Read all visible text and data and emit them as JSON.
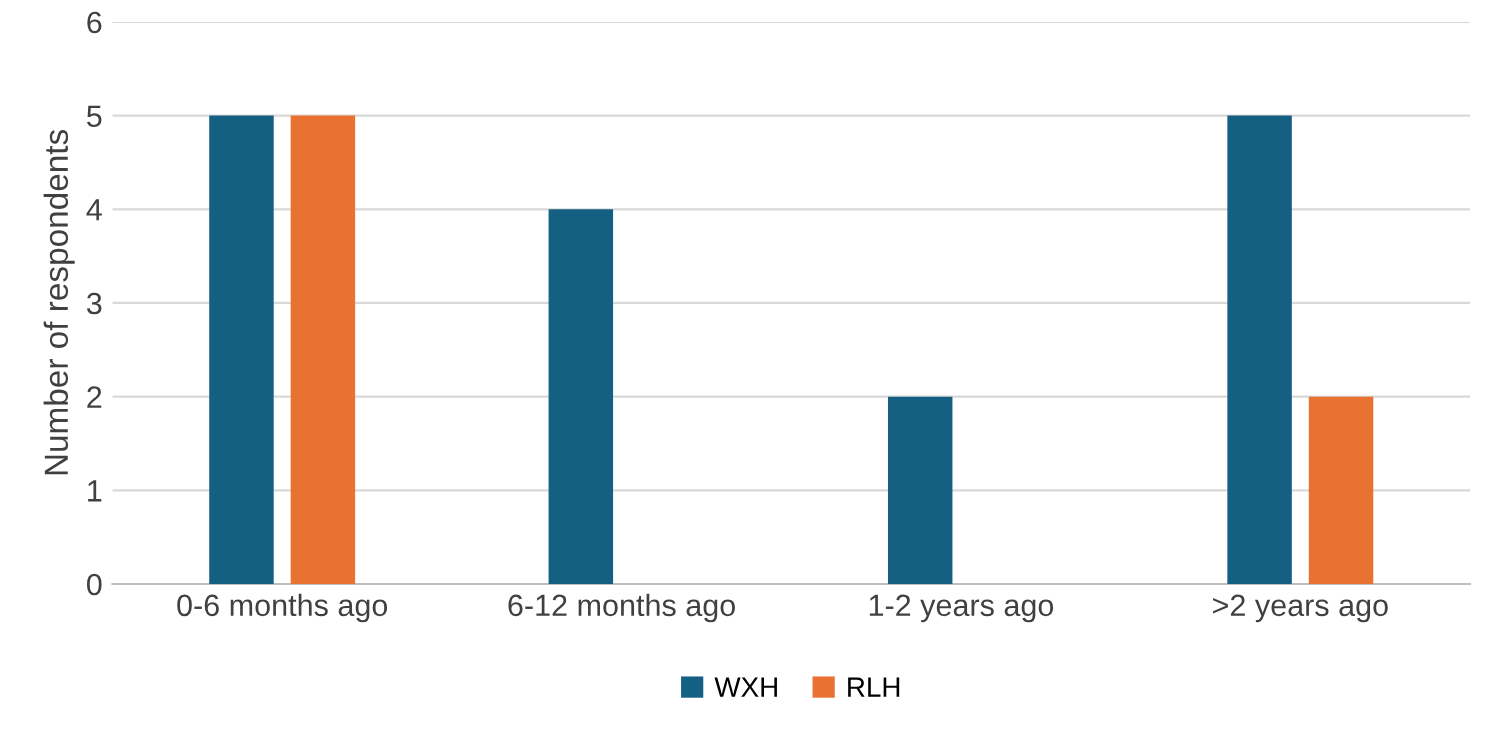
{
  "chart_data": {
    "type": "bar",
    "ylabel": "Number of respondents",
    "categories": [
      "0-6 months ago",
      "6-12 months ago",
      "1-2 years ago",
      ">2 years ago"
    ],
    "series": [
      {
        "name": "WXH",
        "color": "#156082",
        "values": [
          5,
          4,
          2,
          5
        ]
      },
      {
        "name": "RLH",
        "color": "#e97132",
        "values": [
          5,
          0,
          0,
          2
        ]
      }
    ],
    "ylim": [
      0,
      6
    ],
    "yticks": [
      0,
      1,
      2,
      3,
      4,
      5,
      6
    ],
    "grid": "y",
    "legend": "bottom"
  }
}
